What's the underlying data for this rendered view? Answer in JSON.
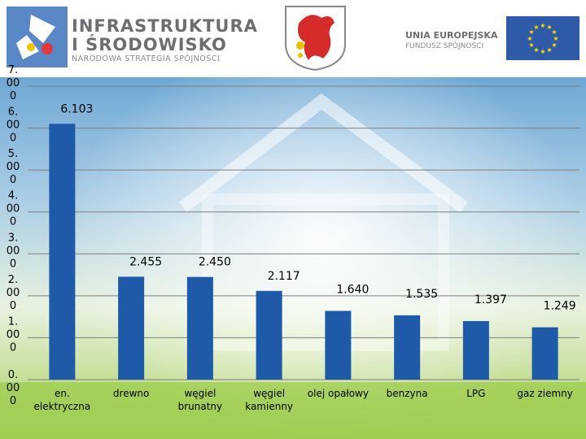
{
  "header": {
    "logo_title_line1": "INFRASTRUKTURA",
    "logo_title_line2": "I ŚRODOWISKO",
    "logo_subtitle": "NARODOWA STRATEGIA SPÓJNOŚCI",
    "eu_line1": "UNIA EUROPEJSKA",
    "eu_line2": "FUNDUSZ SPÓJNOŚCI"
  },
  "colors": {
    "bar": "#1f5aa8",
    "eu_flag": "#2e5aa8",
    "eu_stars": "#ffdd00",
    "crest_red": "#d62b2b"
  },
  "chart_data": {
    "type": "bar",
    "categories": [
      "en.\nelektryczna",
      "drewno",
      "węgiel\nbrunatny",
      "węgiel\nkamienny",
      "olej opałowy",
      "benzyna",
      "LPG",
      "gaz ziemny"
    ],
    "values": [
      6.103,
      2.455,
      2.45,
      2.117,
      1.64,
      1.535,
      1.397,
      1.249
    ],
    "value_labels": [
      "6.103",
      "2.455",
      "2.450",
      "2.117",
      "1.640",
      "1.535",
      "1.397",
      "1.249"
    ],
    "ytick_values": [
      0,
      1,
      2,
      3,
      4,
      5,
      6,
      7
    ],
    "ytick_labels": [
      "0.\n00\n0",
      "1.\n00\n0",
      "2.\n00\n0",
      "3.\n00\n0",
      "4.\n00\n0",
      "5.\n00\n0",
      "6.\n00\n0",
      "7.\n00\n0"
    ],
    "ylim": [
      0,
      7
    ],
    "grid": true
  }
}
